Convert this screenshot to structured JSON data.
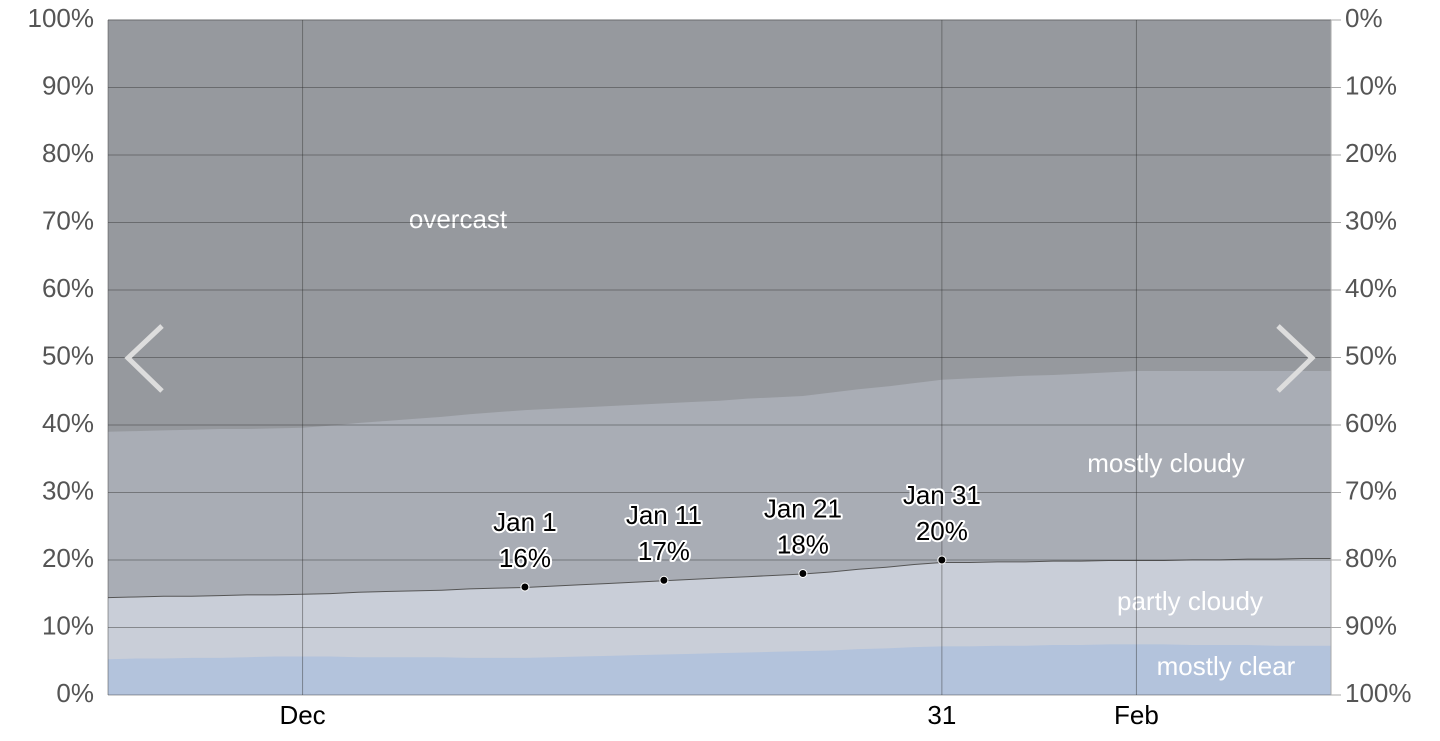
{
  "chart_data": {
    "type": "stacked_area",
    "categories": [
      null,
      null,
      null,
      null,
      null,
      null,
      null,
      "Dec",
      null,
      null,
      null,
      null,
      null,
      null,
      null,
      null,
      null,
      null,
      null,
      null,
      null,
      null,
      null,
      null,
      null,
      null,
      null,
      null,
      null,
      null,
      "31",
      null,
      null,
      null,
      null,
      null,
      null,
      "Feb",
      null,
      null,
      null,
      null,
      null,
      null,
      null
    ],
    "series": [
      {
        "name": "mostly clear",
        "color": "#b3c3dc",
        "values": [
          5.3,
          5.4,
          5.4,
          5.5,
          5.5,
          5.6,
          5.7,
          5.7,
          5.7,
          5.6,
          5.6,
          5.6,
          5.6,
          5.5,
          5.5,
          5.5,
          5.6,
          5.7,
          5.8,
          5.9,
          6.0,
          6.1,
          6.2,
          6.3,
          6.4,
          6.5,
          6.6,
          6.8,
          6.9,
          7.1,
          7.2,
          7.2,
          7.3,
          7.3,
          7.4,
          7.4,
          7.5,
          7.5,
          7.5,
          7.4,
          7.4,
          7.4,
          7.3,
          7.3,
          7.3
        ]
      },
      {
        "name": "partly cloudy",
        "color": "#c9ced8",
        "values": [
          9.2,
          9.2,
          9.3,
          9.2,
          9.3,
          9.3,
          9.2,
          9.3,
          9.4,
          9.7,
          9.8,
          9.9,
          10.0,
          10.3,
          10.4,
          10.5,
          10.6,
          10.7,
          10.8,
          10.9,
          11.0,
          11.1,
          11.2,
          11.3,
          11.4,
          11.5,
          11.7,
          11.9,
          12.1,
          12.3,
          12.5,
          12.5,
          12.5,
          12.5,
          12.5,
          12.5,
          12.5,
          12.5,
          12.5,
          12.7,
          12.7,
          12.8,
          12.9,
          13.0,
          13.0
        ]
      },
      {
        "name": "mostly cloudy",
        "color": "#a9adb5",
        "values": [
          24.5,
          24.5,
          24.5,
          24.6,
          24.6,
          24.5,
          24.6,
          24.6,
          24.8,
          25.0,
          25.2,
          25.4,
          25.6,
          25.8,
          26.0,
          26.2,
          26.2,
          26.2,
          26.2,
          26.2,
          26.2,
          26.2,
          26.2,
          26.3,
          26.3,
          26.3,
          26.5,
          26.6,
          26.7,
          26.8,
          27.0,
          27.2,
          27.3,
          27.5,
          27.5,
          27.7,
          27.8,
          28.0,
          28.0,
          27.9,
          27.9,
          27.8,
          27.8,
          27.7,
          27.7
        ]
      },
      {
        "name": "overcast",
        "color": "#96999e",
        "values": [
          61.0,
          60.9,
          60.8,
          60.7,
          60.6,
          60.6,
          60.5,
          60.4,
          60.1,
          59.7,
          59.4,
          59.1,
          58.8,
          58.4,
          58.1,
          57.8,
          57.6,
          57.4,
          57.2,
          57.0,
          56.8,
          56.6,
          56.4,
          56.1,
          55.9,
          55.7,
          55.2,
          54.7,
          54.3,
          53.8,
          53.3,
          53.1,
          52.9,
          52.7,
          52.6,
          52.4,
          52.2,
          52.0,
          52.0,
          52.0,
          52.0,
          52.0,
          52.0,
          52.0,
          52.0
        ]
      }
    ],
    "annotations": [
      {
        "label": "Jan 1",
        "value": 16,
        "value_label": "16%"
      },
      {
        "label": "Jan 11",
        "value": 17,
        "value_label": "17%"
      },
      {
        "label": "Jan 21",
        "value": 18,
        "value_label": "18%"
      },
      {
        "label": "Jan 31",
        "value": 20,
        "value_label": "20%"
      }
    ],
    "ylim": [
      0,
      100
    ],
    "yticks": [
      {
        "value": 0,
        "label": "0%"
      },
      {
        "value": 10,
        "label": "10%"
      },
      {
        "value": 20,
        "label": "20%"
      },
      {
        "value": 30,
        "label": "30%"
      },
      {
        "value": 40,
        "label": "40%"
      },
      {
        "value": 50,
        "label": "50%"
      },
      {
        "value": 60,
        "label": "60%"
      },
      {
        "value": 70,
        "label": "70%"
      },
      {
        "value": 80,
        "label": "80%"
      },
      {
        "value": 90,
        "label": "90%"
      },
      {
        "value": 100,
        "label": "100%"
      }
    ],
    "y2lim": [
      100,
      0
    ],
    "y2ticks": [
      {
        "value": 0,
        "label": "0%"
      },
      {
        "value": 10,
        "label": "10%"
      },
      {
        "value": 20,
        "label": "20%"
      },
      {
        "value": 30,
        "label": "30%"
      },
      {
        "value": 40,
        "label": "40%"
      },
      {
        "value": 50,
        "label": "50%"
      },
      {
        "value": 60,
        "label": "60%"
      },
      {
        "value": 70,
        "label": "70%"
      },
      {
        "value": 80,
        "label": "80%"
      },
      {
        "value": 90,
        "label": "90%"
      },
      {
        "value": 100,
        "label": "100%"
      }
    ],
    "grid": true
  }
}
